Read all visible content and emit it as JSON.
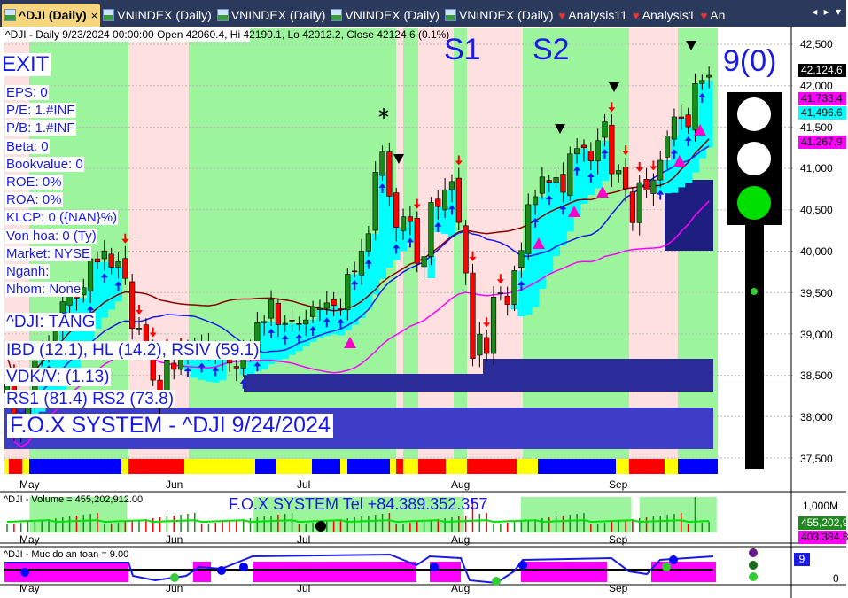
{
  "tabs": [
    {
      "label": "^DJI (Daily)",
      "icon": "chart-doc-icon",
      "active": true,
      "close": "×"
    },
    {
      "label": "VNINDEX (Daily)",
      "icon": "chart-doc-icon"
    },
    {
      "label": "VNINDEX (Daily)",
      "icon": "chart-doc-icon"
    },
    {
      "label": "VNINDEX (Daily)",
      "icon": "chart-doc-icon"
    },
    {
      "label": "VNINDEX (Daily)",
      "icon": "chart-doc-icon"
    },
    {
      "label": "Analysis11",
      "icon": "analysis-icon"
    },
    {
      "label": "Analysis1",
      "icon": "analysis-icon"
    },
    {
      "label": "An",
      "icon": "analysis-icon"
    }
  ],
  "tab_nav": "◂ ▸ ▾",
  "header": "^DJI - Daily 9/23/2024 00:00:00 Open 42060.4, Hi 42190.1, Lo 42012.2, Close 42124.6 (0.1%)",
  "signal": "EXIT",
  "info": [
    "EPS: 0",
    "P/E: 1.#INF",
    "P/B: 1.#INF",
    "Beta: 0",
    "Bookvalue: 0",
    "ROE: 0%",
    "ROA: 0%",
    "KLCP: 0 ({NAN}%)",
    "Von hoa: 0 (Ty)",
    "Market: NYSE",
    "Nganh:",
    "Nhom: None"
  ],
  "trend": "^DJI: TĂNG",
  "ibd": "IBD (12.1), HL (14.2), RSIV (59.1)",
  "vdk": "VDK/V:  (1.13)",
  "rs": "RS1 (81.4) RS2 (73.8)",
  "title": "F.O.X SYSTEM - ^DJI 9/24/2024",
  "s1": "S1",
  "s2": "S2",
  "score": "9(0)",
  "traffic_light": {
    "top": "white",
    "middle": "white",
    "bottom": "#00e000"
  },
  "price_axis": [
    "42,500",
    "42,000",
    "41,500",
    "41,000",
    "40,500",
    "40,000",
    "39,500",
    "39,000",
    "38,500",
    "38,000",
    "37,500"
  ],
  "price_tags": [
    {
      "v": "42,124.6",
      "bg": "#000000",
      "fg": "#ffffff"
    },
    {
      "v": "41,733.4",
      "bg": "#ff00ff",
      "fg": "#000000"
    },
    {
      "v": "41,496.6",
      "bg": "#00ffff",
      "fg": "#000000"
    },
    {
      "v": "41,267.9",
      "bg": "#ff00ff",
      "fg": "#000000"
    }
  ],
  "months": [
    "May",
    "Jun",
    "Jul",
    "Aug",
    "Sep"
  ],
  "volume": {
    "label": "^DJI - Volume = 455,202,912.00",
    "banner": "F.O.X SYSTEM Tel +84.389.352.357",
    "axis": "1,000M",
    "tag1": "455,202,9",
    "tag2": "403,384,8"
  },
  "safety": {
    "label": "^DJI - Muc do an toan = 9.00",
    "tag": "9",
    "axis": "0"
  },
  "chart_data": {
    "type": "candlestick",
    "last": {
      "open": 42060.4,
      "high": 42190.1,
      "low": 42012.2,
      "close": 42124.6
    },
    "ylim": [
      37500,
      42500
    ],
    "closes": [
      38386,
      37816,
      37903,
      38226,
      38676,
      38852,
      38884,
      39056,
      39388,
      39513,
      39432,
      39558,
      39908,
      39869,
      40004,
      39807,
      39872,
      39671,
      39065,
      39070,
      38852,
      38441,
      38112,
      38686,
      38571,
      38711,
      38807,
      38886,
      38799,
      38868,
      38747,
      38712,
      38647,
      38589,
      38778,
      38834,
      39134,
      39150,
      39411,
      39112,
      39127,
      39164,
      39118,
      39169,
      39331,
      39308,
      39375,
      39344,
      39291,
      39721,
      39753,
      40000,
      40211,
      40954,
      41198,
      40665,
      40287,
      40415,
      40358,
      39853,
      39935,
      40589,
      40539,
      40743,
      40842,
      40347,
      39737,
      38703,
      38997,
      38763,
      39446,
      39497,
      39357,
      39765,
      40008,
      40563,
      40659,
      40896,
      40834,
      40890,
      40712,
      41175,
      41240,
      41250,
      41091,
      41335,
      41563,
      40936,
      40975,
      40755,
      40345,
      40829,
      40736,
      40861,
      41097,
      41393,
      41622,
      41606,
      41503,
      42025,
      42063,
      42124.6
    ]
  }
}
